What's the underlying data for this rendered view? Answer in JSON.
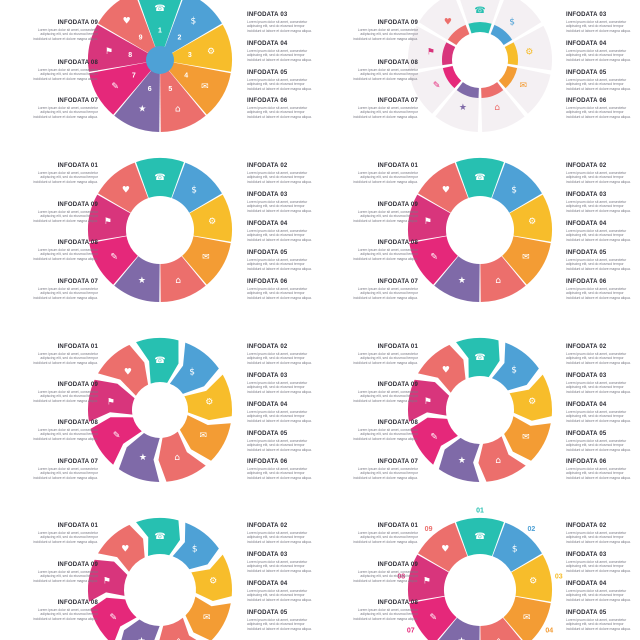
{
  "colors": {
    "yellow": "#f7bd2b",
    "orange": "#f39c34",
    "salmon": "#ec6f6c",
    "pink": "#e5287a",
    "magenta": "#d8357c",
    "purple": "#7f6aa8",
    "blue": "#4ea1d6",
    "teal": "#27c0b1",
    "green": "#3ec493"
  },
  "body_text": "Lorem ipsum dolor sit amet, consectetur adipiscing elit, sed do eiusmod tempor incididunt ut labore et dolore magna aliqua.",
  "panels": [
    {
      "id": "p1",
      "style": "numbered-pie",
      "left_labels": [
        {
          "title": "INFODATA 09"
        },
        {
          "title": "INFODATA 08"
        },
        {
          "title": "INFODATA 07"
        }
      ],
      "right_labels": [
        {
          "title": "INFODATA 03"
        },
        {
          "title": "INFODATA 04"
        },
        {
          "title": "INFODATA 05"
        },
        {
          "title": "INFODATA 06"
        }
      ],
      "numbers": [
        "1",
        "2",
        "3",
        "4",
        "5",
        "6",
        "7",
        "8",
        "9"
      ]
    },
    {
      "id": "p2",
      "style": "segment-ring",
      "left_labels": [
        {
          "title": "INFODATA 09"
        },
        {
          "title": "INFODATA 08"
        },
        {
          "title": "INFODATA 07"
        }
      ],
      "right_labels": [
        {
          "title": "INFODATA 03"
        },
        {
          "title": "INFODATA 04"
        },
        {
          "title": "INFODATA 05"
        },
        {
          "title": "INFODATA 06"
        }
      ]
    },
    {
      "id": "p3",
      "style": "swirl-ring",
      "left_labels": [
        {
          "title": "INFODATA 01"
        },
        {
          "title": "INFODATA 09"
        },
        {
          "title": "INFODATA 08"
        },
        {
          "title": "INFODATA 07"
        }
      ],
      "right_labels": [
        {
          "title": "INFODATA 02"
        },
        {
          "title": "INFODATA 03"
        },
        {
          "title": "INFODATA 04"
        },
        {
          "title": "INFODATA 05"
        },
        {
          "title": "INFODATA 06"
        }
      ]
    },
    {
      "id": "p4",
      "style": "wave-ring",
      "left_labels": [
        {
          "title": "INFODATA 01"
        },
        {
          "title": "INFODATA 09"
        },
        {
          "title": "INFODATA 08"
        },
        {
          "title": "INFODATA 07"
        }
      ],
      "right_labels": [
        {
          "title": "INFODATA 02"
        },
        {
          "title": "INFODATA 03"
        },
        {
          "title": "INFODATA 04"
        },
        {
          "title": "INFODATA 05"
        },
        {
          "title": "INFODATA 06"
        }
      ]
    },
    {
      "id": "p5",
      "style": "arrow-ring",
      "left_labels": [
        {
          "title": "INFODATA 01"
        },
        {
          "title": "INFODATA 09"
        },
        {
          "title": "INFODATA 08"
        },
        {
          "title": "INFODATA 07"
        }
      ],
      "right_labels": [
        {
          "title": "INFODATA 02"
        },
        {
          "title": "INFODATA 03"
        },
        {
          "title": "INFODATA 04"
        },
        {
          "title": "INFODATA 05"
        },
        {
          "title": "INFODATA 06"
        }
      ]
    },
    {
      "id": "p6",
      "style": "arrow-ring",
      "left_labels": [
        {
          "title": "INFODATA 01"
        },
        {
          "title": "INFODATA 09"
        },
        {
          "title": "INFODATA 08"
        },
        {
          "title": "INFODATA 07"
        }
      ],
      "right_labels": [
        {
          "title": "INFODATA 02"
        },
        {
          "title": "INFODATA 03"
        },
        {
          "title": "INFODATA 04"
        },
        {
          "title": "INFODATA 05"
        },
        {
          "title": "INFODATA 06"
        }
      ]
    },
    {
      "id": "p7",
      "style": "ribbon-ring",
      "left_labels": [
        {
          "title": "INFODATA 01"
        },
        {
          "title": "INFODATA 09"
        },
        {
          "title": "INFODATA 08"
        }
      ],
      "right_labels": [
        {
          "title": "INFODATA 02"
        },
        {
          "title": "INFODATA 03"
        },
        {
          "title": "INFODATA 04"
        },
        {
          "title": "INFODATA 05"
        }
      ]
    },
    {
      "id": "p8",
      "style": "burst-ring",
      "left_labels": [
        {
          "title": "INFODATA 01"
        },
        {
          "title": "INFODATA 09"
        },
        {
          "title": "INFODATA 08"
        }
      ],
      "right_labels": [
        {
          "title": "INFODATA 02"
        },
        {
          "title": "INFODATA 03"
        },
        {
          "title": "INFODATA 04"
        },
        {
          "title": "INFODATA 05"
        }
      ],
      "numbers": [
        "01",
        "02",
        "03",
        "04",
        "05",
        "06",
        "07",
        "08",
        "09"
      ]
    }
  ]
}
